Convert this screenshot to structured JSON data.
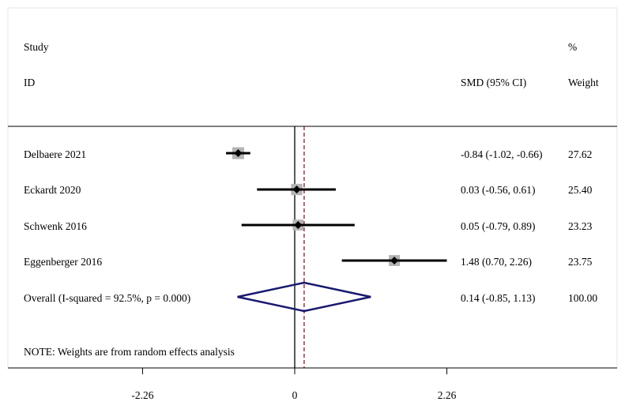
{
  "chart_data": {
    "type": "forest",
    "header": {
      "study_line1": "Study",
      "study_line2": "ID",
      "effect": "SMD (95% CI)",
      "weight_line1": "%",
      "weight_line2": "Weight"
    },
    "studies": [
      {
        "label": "Delbaere  2021",
        "smd": -0.84,
        "lo": -1.02,
        "hi": -0.66,
        "ci_text": "-0.84 (-1.02, -0.66)",
        "weight": 27.62,
        "weight_text": "27.62"
      },
      {
        "label": "Eckardt  2020",
        "smd": 0.03,
        "lo": -0.56,
        "hi": 0.61,
        "ci_text": "0.03 (-0.56, 0.61)",
        "weight": 25.4,
        "weight_text": "25.40"
      },
      {
        "label": "Schwenk  2016",
        "smd": 0.05,
        "lo": -0.79,
        "hi": 0.89,
        "ci_text": "0.05 (-0.79, 0.89)",
        "weight": 23.23,
        "weight_text": "23.23"
      },
      {
        "label": "Eggenberger  2016",
        "smd": 1.48,
        "lo": 0.7,
        "hi": 2.26,
        "ci_text": "1.48 (0.70, 2.26)",
        "weight": 23.75,
        "weight_text": "23.75"
      }
    ],
    "overall": {
      "label": "Overall  (I-squared = 92.5%, p = 0.000)",
      "smd": 0.14,
      "lo": -0.85,
      "hi": 1.13,
      "ci_text": "0.14 (-0.85, 1.13)",
      "weight_text": "100.00"
    },
    "note": "NOTE: Weights are from random effects analysis",
    "x_ticks": [
      {
        "value": -2.26,
        "label": "-2.26"
      },
      {
        "value": 0,
        "label": "0"
      },
      {
        "value": 2.26,
        "label": "2.26"
      }
    ],
    "null_line": 0,
    "xlim": [
      -2.26,
      2.26
    ],
    "colors": {
      "background": "#ffffff",
      "frame": "#e6e6e6",
      "ink": "#000000",
      "weight_box": "#b4b4b4",
      "overall_line": "#8b1a1a",
      "diamond": "#1a1a6e"
    }
  }
}
